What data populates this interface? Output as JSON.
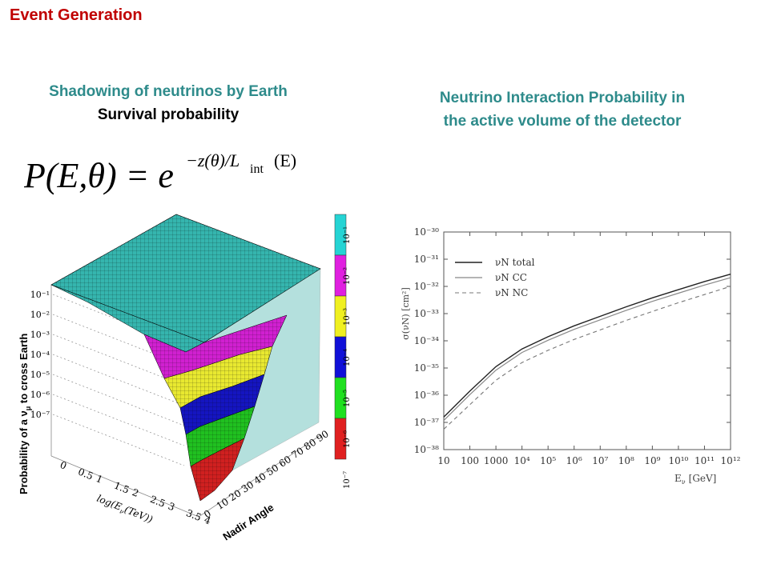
{
  "slide_title": "Event Generation",
  "left_panel": {
    "heading": "Shadowing of neutrinos by Earth",
    "subheading": "Survival probability",
    "formula": {
      "lhs": "P(E,θ) = e",
      "exponent": "−z(θ)/L",
      "subscript": "int",
      "exponent_tail": "(E)"
    }
  },
  "right_panel": {
    "heading_line1": "Neutrino Interaction Probability in",
    "heading_line2": "the active volume of the detector"
  },
  "chart_data": [
    {
      "type": "surface",
      "zlabel": "Probability of a ν",
      "zlabel_sub": "μ",
      "zlabel_tail": " to cross Earth",
      "xlabel": "log(E",
      "xlabel_sub": "ν",
      "xlabel_tail": "(TeV))",
      "ylabel": "Nadir Angle",
      "x_ticks": [
        "0",
        "0.5",
        "1",
        "1.5",
        "2",
        "2.5",
        "3",
        "3.5",
        "4"
      ],
      "y_ticks": [
        "0",
        "10",
        "20",
        "30",
        "40",
        "50",
        "60",
        "70",
        "80",
        "90"
      ],
      "z_ticks": [
        "10⁻¹",
        "10⁻²",
        "10⁻³",
        "10⁻⁴",
        "10⁻⁵",
        "10⁻⁶",
        "10⁻⁷"
      ],
      "colorbar": {
        "labels": [
          "10⁻¹",
          "10⁻²",
          "10⁻³",
          "10⁻⁴",
          "10⁻⁵",
          "10⁻⁶",
          "10⁻⁷"
        ],
        "colors": [
          "#25d4d4",
          "#e020e0",
          "#f0f020",
          "#1010d8",
          "#20e020",
          "#e02020"
        ]
      },
      "colors": {
        "top": "#35b5ae",
        "magenta": "#d020d0",
        "yellow": "#e8e830",
        "blue": "#1515c0",
        "green": "#20c020",
        "red": "#d02020"
      }
    },
    {
      "type": "line",
      "xlabel": "E",
      "xlabel_sub": "ν",
      "xlabel_tail": "[GeV]",
      "ylabel": "σ(νN) [cm²]",
      "x_ticks": [
        "10",
        "100",
        "1000",
        "10⁴",
        "10⁵",
        "10⁶",
        "10⁷",
        "10⁸",
        "10⁹",
        "10¹⁰",
        "10¹¹",
        "10¹²"
      ],
      "y_ticks": [
        "10⁻³⁰",
        "10⁻³¹",
        "10⁻³²",
        "10⁻³³",
        "10⁻³⁴",
        "10⁻³⁵",
        "10⁻³⁶",
        "10⁻³⁷",
        "10⁻³⁸"
      ],
      "log_x": [
        1,
        12
      ],
      "log_y": [
        -38,
        -30
      ],
      "series": [
        {
          "name": "νN total",
          "style": "solid-dark",
          "x": [
            1,
            2,
            3,
            4,
            5,
            6,
            7,
            8,
            9,
            10,
            11,
            12
          ],
          "y": [
            -36.8,
            -35.85,
            -34.95,
            -34.3,
            -33.85,
            -33.45,
            -33.1,
            -32.75,
            -32.42,
            -32.12,
            -31.82,
            -31.55
          ]
        },
        {
          "name": "νN CC",
          "style": "solid-light",
          "x": [
            1,
            2,
            3,
            4,
            5,
            6,
            7,
            8,
            9,
            10,
            11,
            12
          ],
          "y": [
            -36.93,
            -35.98,
            -35.08,
            -34.43,
            -33.98,
            -33.58,
            -33.23,
            -32.88,
            -32.55,
            -32.25,
            -31.95,
            -31.68
          ]
        },
        {
          "name": "νN NC",
          "style": "dashed",
          "x": [
            1,
            2,
            3,
            4,
            5,
            6,
            7,
            8,
            9,
            10,
            11,
            12
          ],
          "y": [
            -37.25,
            -36.35,
            -35.45,
            -34.8,
            -34.35,
            -33.95,
            -33.6,
            -33.25,
            -32.92,
            -32.6,
            -32.3,
            -32.0
          ]
        }
      ]
    }
  ]
}
